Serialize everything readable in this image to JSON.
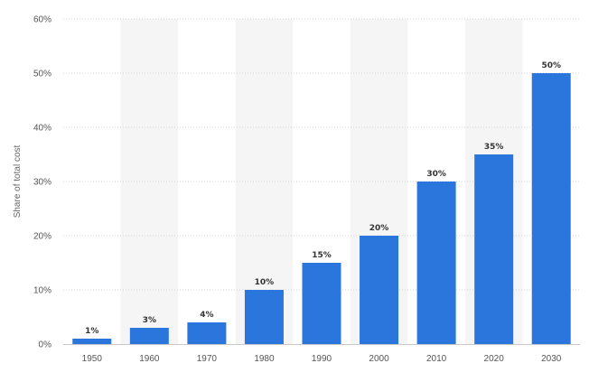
{
  "chart_data": {
    "type": "bar",
    "categories": [
      "1950",
      "1960",
      "1970",
      "1980",
      "1990",
      "2000",
      "2010",
      "2020",
      "2030"
    ],
    "values": [
      1,
      3,
      4,
      10,
      15,
      20,
      30,
      35,
      50
    ],
    "data_labels": [
      "1%",
      "3%",
      "4%",
      "10%",
      "15%",
      "20%",
      "30%",
      "35%",
      "50%"
    ],
    "title": "",
    "xlabel": "",
    "ylabel": "Share of total cost",
    "ylim": [
      0,
      60
    ],
    "yticks": [
      {
        "value": 0,
        "label": "0%"
      },
      {
        "value": 10,
        "label": "10%"
      },
      {
        "value": 20,
        "label": "20%"
      },
      {
        "value": 30,
        "label": "30%"
      },
      {
        "value": 40,
        "label": "40%"
      },
      {
        "value": 50,
        "label": "50%"
      },
      {
        "value": 60,
        "label": "60%"
      }
    ],
    "grid": true,
    "alternate_column_shading": true,
    "colors": {
      "bar": "#2a76dd",
      "shade": "#f5f5f5",
      "grid": "#d5d5d5",
      "axis": "#c8c8c8"
    }
  }
}
